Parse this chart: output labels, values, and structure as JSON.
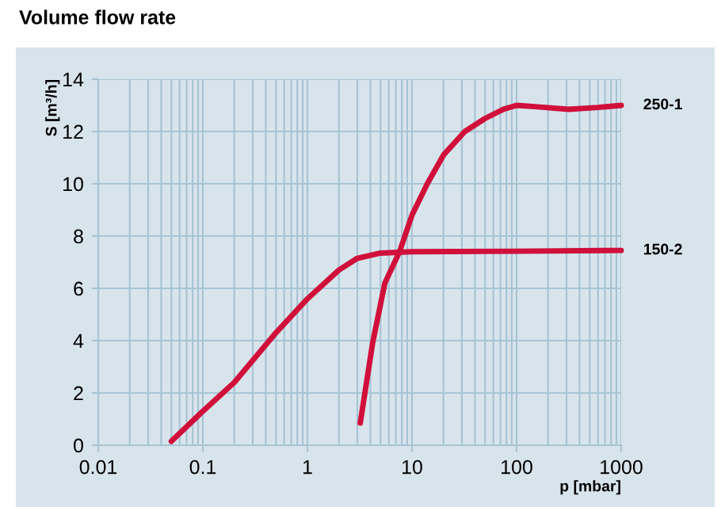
{
  "chart_data": {
    "type": "line",
    "title": "Volume flow rate",
    "xlabel": "p [mbar]",
    "ylabel": "S [m³/h]",
    "log": "x",
    "xlim": [
      0.01,
      1000
    ],
    "xticks": [
      0.01,
      0.1,
      1,
      10,
      100,
      1000
    ],
    "ylim": [
      0,
      14
    ],
    "yticks": [
      0,
      2,
      4,
      6,
      8,
      10,
      12,
      14
    ],
    "grid": true,
    "legend": false,
    "marker": "none",
    "line_style": "solid",
    "series": [
      {
        "name": "250-1",
        "color": "#d0103a",
        "x": [
          3.2,
          4.2,
          5.5,
          7.6,
          10,
          14,
          20,
          32,
          50,
          75,
          100,
          150,
          316,
          600,
          1000
        ],
        "values": [
          0.85,
          3.9,
          6.2,
          7.4,
          8.8,
          10.0,
          11.1,
          12.0,
          12.5,
          12.85,
          13.0,
          12.95,
          12.85,
          12.92,
          13.0
        ]
      },
      {
        "name": "150-2",
        "color": "#d0103a",
        "x": [
          0.05,
          0.1,
          0.2,
          0.5,
          1,
          2,
          3,
          5,
          10,
          100,
          1000
        ],
        "values": [
          0.15,
          1.3,
          2.4,
          4.3,
          5.6,
          6.7,
          7.15,
          7.35,
          7.4,
          7.42,
          7.45
        ]
      }
    ]
  }
}
